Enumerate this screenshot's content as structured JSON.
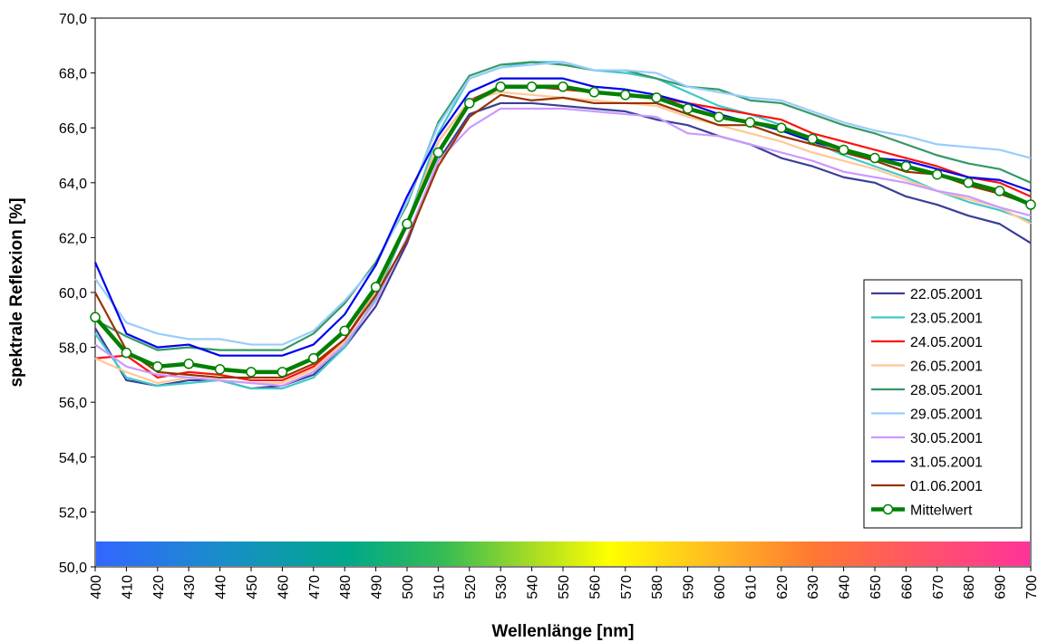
{
  "chart_data": {
    "type": "line",
    "title": "",
    "xlabel": "Wellenlänge [nm]",
    "ylabel": "spektrale Reflexion [%]",
    "ylim": [
      50,
      70
    ],
    "xlim": [
      400,
      700
    ],
    "x": [
      400,
      410,
      420,
      430,
      440,
      450,
      460,
      470,
      480,
      490,
      500,
      510,
      520,
      530,
      540,
      550,
      560,
      570,
      580,
      590,
      600,
      610,
      620,
      630,
      640,
      650,
      660,
      670,
      680,
      690,
      700
    ],
    "x_tick_labels": [
      "400",
      "410",
      "420",
      "430",
      "440",
      "450",
      "460",
      "470",
      "480",
      "490",
      "500",
      "510",
      "520",
      "530",
      "540",
      "550",
      "560",
      "570",
      "580",
      "590",
      "600",
      "610",
      "620",
      "630",
      "640",
      "650",
      "660",
      "670",
      "680",
      "690",
      "700"
    ],
    "y_tick_labels": [
      "50,0",
      "52,0",
      "54,0",
      "56,0",
      "58,0",
      "60,0",
      "62,0",
      "64,0",
      "66,0",
      "68,0",
      "70,0"
    ],
    "grid": false,
    "legend_position": "right",
    "spectrum_bar": true,
    "series": [
      {
        "name": "22.05.2001",
        "color": "#3a3e96",
        "values": [
          58.7,
          56.8,
          56.6,
          56.8,
          56.8,
          56.5,
          56.6,
          57.0,
          58.0,
          59.5,
          61.8,
          64.8,
          66.5,
          66.9,
          66.9,
          66.8,
          66.7,
          66.6,
          66.3,
          66.1,
          65.7,
          65.4,
          64.9,
          64.6,
          64.2,
          64.0,
          63.5,
          63.2,
          62.8,
          62.5,
          61.8
        ]
      },
      {
        "name": "23.05.2001",
        "color": "#40c8c8",
        "values": [
          58.5,
          56.9,
          56.6,
          56.7,
          56.8,
          56.5,
          56.5,
          56.9,
          58.0,
          59.8,
          62.5,
          65.8,
          67.8,
          68.2,
          68.4,
          68.4,
          68.1,
          68.0,
          67.8,
          67.3,
          66.8,
          66.5,
          66.1,
          65.5,
          65.0,
          64.6,
          64.2,
          63.7,
          63.3,
          63.0,
          62.6
        ]
      },
      {
        "name": "24.05.2001",
        "color": "#ff1010",
        "values": [
          57.6,
          57.7,
          56.9,
          57.1,
          57.0,
          56.8,
          56.8,
          57.3,
          58.3,
          60.0,
          62.5,
          65.5,
          67.0,
          67.5,
          67.5,
          67.4,
          67.3,
          67.2,
          67.1,
          66.9,
          66.7,
          66.5,
          66.3,
          65.8,
          65.5,
          65.2,
          64.9,
          64.6,
          64.2,
          64.0,
          63.5
        ]
      },
      {
        "name": "26.05.2001",
        "color": "#ffc896",
        "values": [
          57.6,
          57.1,
          56.7,
          56.9,
          56.8,
          56.7,
          56.7,
          57.2,
          58.2,
          60.0,
          62.5,
          65.5,
          67.0,
          67.3,
          67.2,
          67.1,
          67.0,
          66.9,
          66.8,
          66.4,
          66.1,
          65.8,
          65.5,
          65.1,
          64.8,
          64.5,
          64.1,
          63.7,
          63.4,
          63.1,
          62.5
        ]
      },
      {
        "name": "28.05.2001",
        "color": "#339966",
        "values": [
          59.0,
          58.4,
          57.9,
          58.0,
          57.9,
          57.9,
          57.9,
          58.5,
          59.6,
          61.1,
          63.2,
          66.2,
          67.9,
          68.3,
          68.4,
          68.3,
          68.1,
          68.1,
          67.8,
          67.5,
          67.4,
          67.0,
          66.9,
          66.5,
          66.1,
          65.8,
          65.4,
          65.0,
          64.7,
          64.5,
          64.0
        ]
      },
      {
        "name": "29.05.2001",
        "color": "#99ccff",
        "values": [
          60.5,
          58.9,
          58.5,
          58.3,
          58.3,
          58.1,
          58.1,
          58.6,
          59.7,
          61.0,
          63.3,
          66.1,
          67.8,
          68.2,
          68.3,
          68.4,
          68.1,
          68.1,
          68.0,
          67.5,
          67.3,
          67.1,
          67.0,
          66.6,
          66.2,
          65.9,
          65.7,
          65.4,
          65.3,
          65.2,
          64.9
        ]
      },
      {
        "name": "30.05.2001",
        "color": "#cc99ff",
        "values": [
          58.1,
          57.3,
          57.0,
          56.9,
          56.8,
          56.7,
          56.6,
          57.1,
          58.1,
          59.7,
          62.0,
          64.8,
          66.0,
          66.7,
          66.7,
          66.7,
          66.6,
          66.5,
          66.4,
          65.8,
          65.7,
          65.4,
          65.1,
          64.8,
          64.4,
          64.2,
          64.0,
          63.7,
          63.5,
          63.1,
          62.8
        ]
      },
      {
        "name": "31.05.2001",
        "color": "#0000ee",
        "values": [
          61.1,
          58.5,
          58.0,
          58.1,
          57.7,
          57.7,
          57.7,
          58.1,
          59.2,
          61.0,
          63.5,
          65.7,
          67.3,
          67.8,
          67.8,
          67.8,
          67.5,
          67.4,
          67.2,
          66.9,
          66.5,
          66.2,
          65.9,
          65.5,
          65.2,
          64.9,
          64.8,
          64.5,
          64.2,
          64.1,
          63.7
        ]
      },
      {
        "name": "01.06.2001",
        "color": "#993300",
        "values": [
          60.0,
          57.9,
          57.1,
          57.0,
          56.9,
          56.9,
          56.9,
          57.4,
          58.3,
          59.9,
          61.9,
          64.6,
          66.4,
          67.2,
          67.0,
          67.1,
          66.9,
          66.9,
          66.9,
          66.5,
          66.1,
          66.1,
          65.7,
          65.4,
          65.1,
          64.8,
          64.4,
          64.3,
          63.9,
          63.6,
          63.2
        ]
      },
      {
        "name": "Mittelwert",
        "color": "#008000",
        "marker": "circle",
        "values": [
          59.1,
          57.8,
          57.3,
          57.4,
          57.2,
          57.1,
          57.1,
          57.6,
          58.6,
          60.2,
          62.5,
          65.1,
          66.9,
          67.5,
          67.5,
          67.5,
          67.3,
          67.2,
          67.1,
          66.7,
          66.4,
          66.2,
          66.0,
          65.6,
          65.2,
          64.9,
          64.6,
          64.3,
          64.0,
          63.7,
          63.2
        ]
      }
    ]
  }
}
